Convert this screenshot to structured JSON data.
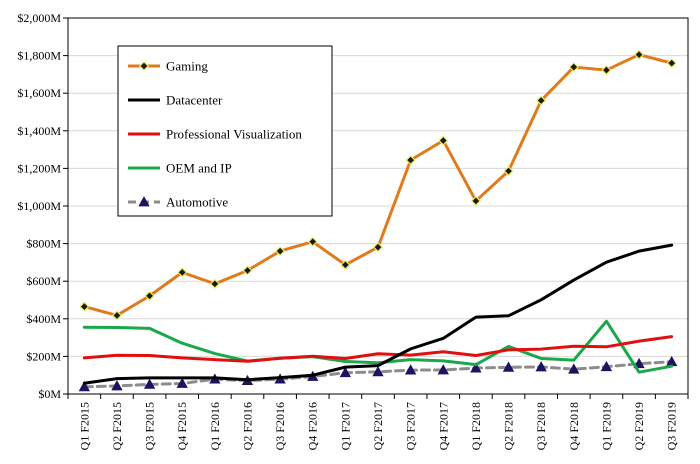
{
  "chart_data": {
    "type": "line",
    "title": "",
    "xlabel": "",
    "ylabel": "",
    "ylim": [
      0,
      2000
    ],
    "y_ticks": [
      "$0M",
      "$200M",
      "$400M",
      "$600M",
      "$800M",
      "$1,000M",
      "$1,200M",
      "$1,400M",
      "$1,600M",
      "$1,800M",
      "$2,000M"
    ],
    "grid": "horizontal",
    "legend_position": "top-left",
    "categories": [
      "Q1 F2015",
      "Q2 F2015",
      "Q3 F2015",
      "Q4 F2015",
      "Q1 F2016",
      "Q2 F2016",
      "Q3 F2016",
      "Q4 F2016",
      "Q1 F2017",
      "Q2 F2017",
      "Q3 F2017",
      "Q4 F2017",
      "Q1 F2018",
      "Q2 F2018",
      "Q3 F2018",
      "Q4 F2018",
      "Q1 F2019",
      "Q2 F2019",
      "Q3 F2019"
    ],
    "series": [
      {
        "name": "Gaming",
        "color": "#e07b1c",
        "marker": "diamond",
        "dash": "solid",
        "values": [
          465,
          418,
          522,
          647,
          586,
          657,
          760,
          810,
          687,
          781,
          1244,
          1348,
          1027,
          1186,
          1561,
          1739,
          1723,
          1805,
          1760
        ]
      },
      {
        "name": "Datacenter",
        "color": "#000000",
        "marker": "none",
        "dash": "solid",
        "values": [
          57,
          82,
          86,
          86,
          86,
          76,
          87,
          100,
          143,
          151,
          240,
          296,
          409,
          416,
          501,
          606,
          701,
          760,
          792
        ]
      },
      {
        "name": "Professional Visualization",
        "color": "#e01010",
        "marker": "none",
        "dash": "solid",
        "values": [
          192,
          206,
          205,
          192,
          183,
          174,
          190,
          201,
          189,
          214,
          207,
          225,
          205,
          235,
          239,
          254,
          251,
          281,
          305
        ]
      },
      {
        "name": "OEM and IP",
        "color": "#1aa84a",
        "marker": "none",
        "dash": "solid",
        "values": [
          355,
          354,
          349,
          270,
          215,
          175,
          190,
          199,
          173,
          166,
          183,
          176,
          156,
          253,
          189,
          180,
          387,
          116,
          148
        ]
      },
      {
        "name": "Automotive",
        "color": "#8c8c8c",
        "marker": "triangle",
        "dash": "dashed",
        "values": [
          38,
          43,
          51,
          56,
          79,
          71,
          79,
          93,
          113,
          118,
          127,
          128,
          138,
          142,
          144,
          132,
          145,
          161,
          172
        ]
      }
    ]
  }
}
